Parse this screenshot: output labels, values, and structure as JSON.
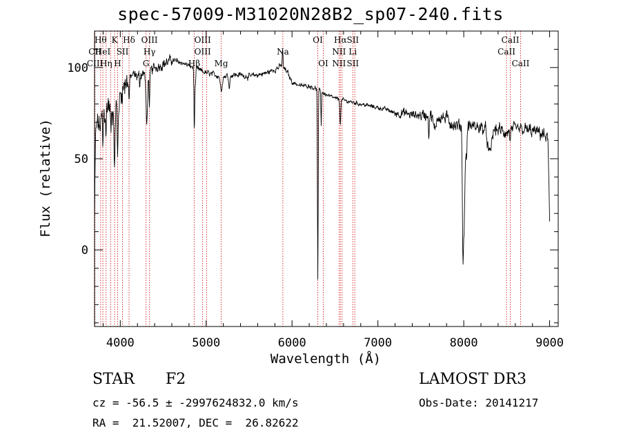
{
  "chart_data": {
    "type": "line",
    "title": "spec-57009-M31020N28B2_sp07-240.fits",
    "xlabel": "Wavelength (Å)",
    "ylabel": "Flux (relative)",
    "xlim": [
      3700,
      9100
    ],
    "ylim": [
      -42,
      120
    ],
    "xticks": [
      4000,
      5000,
      6000,
      7000,
      8000,
      9000
    ],
    "yticks": [
      0,
      50,
      100
    ],
    "grid": false,
    "color": "#000000",
    "line_color": "#cc0000",
    "anchors": [
      [
        3700,
        15
      ],
      [
        3712,
        62
      ],
      [
        3730,
        70
      ],
      [
        3760,
        67
      ],
      [
        3790,
        72
      ],
      [
        3820,
        75
      ],
      [
        3860,
        80
      ],
      [
        3900,
        74
      ],
      [
        3940,
        82
      ],
      [
        3980,
        80
      ],
      [
        4020,
        88
      ],
      [
        4060,
        92
      ],
      [
        4100,
        94
      ],
      [
        4150,
        96
      ],
      [
        4200,
        95
      ],
      [
        4260,
        97
      ],
      [
        4300,
        96
      ],
      [
        4400,
        100
      ],
      [
        4500,
        102
      ],
      [
        4600,
        104
      ],
      [
        4700,
        103
      ],
      [
        4800,
        101
      ],
      [
        4900,
        99
      ],
      [
        5000,
        97
      ],
      [
        5100,
        96
      ],
      [
        5200,
        95
      ],
      [
        5300,
        96
      ],
      [
        5400,
        96
      ],
      [
        5500,
        95
      ],
      [
        5600,
        96
      ],
      [
        5700,
        97
      ],
      [
        5800,
        99
      ],
      [
        5880,
        101
      ],
      [
        5950,
        97
      ],
      [
        6000,
        92
      ],
      [
        6100,
        90
      ],
      [
        6200,
        90
      ],
      [
        6300,
        88
      ],
      [
        6400,
        85
      ],
      [
        6500,
        83
      ],
      [
        6600,
        82
      ],
      [
        6700,
        81
      ],
      [
        6800,
        80
      ],
      [
        6900,
        79
      ],
      [
        7000,
        78
      ],
      [
        7100,
        77
      ],
      [
        7200,
        75
      ],
      [
        7300,
        75
      ],
      [
        7400,
        74
      ],
      [
        7500,
        74
      ],
      [
        7600,
        74
      ],
      [
        7700,
        73
      ],
      [
        7800,
        72
      ],
      [
        7900,
        68
      ],
      [
        8000,
        68
      ],
      [
        8100,
        68
      ],
      [
        8200,
        67
      ],
      [
        8300,
        66
      ],
      [
        8400,
        66
      ],
      [
        8500,
        64
      ],
      [
        8600,
        66
      ],
      [
        8700,
        66
      ],
      [
        8800,
        65
      ],
      [
        8900,
        64
      ],
      [
        8980,
        61
      ],
      [
        9000,
        15
      ]
    ],
    "dips": [
      [
        3934,
        38,
        8
      ],
      [
        3969,
        30,
        8
      ],
      [
        3890,
        12,
        6
      ],
      [
        3835,
        15,
        5
      ],
      [
        3798,
        20,
        4
      ],
      [
        4102,
        12,
        7
      ],
      [
        4226,
        6,
        5
      ],
      [
        4308,
        28,
        12
      ],
      [
        4340,
        22,
        6
      ],
      [
        4861,
        30,
        5
      ],
      [
        4870,
        12,
        10
      ],
      [
        5175,
        8,
        14
      ],
      [
        5270,
        6,
        10
      ],
      [
        5890,
        -10,
        6
      ],
      [
        6300,
        105,
        6
      ],
      [
        6340,
        18,
        5
      ],
      [
        6563,
        14,
        7
      ],
      [
        7594,
        12,
        5
      ],
      [
        7660,
        8,
        20
      ],
      [
        7990,
        62,
        9
      ],
      [
        8005,
        52,
        12
      ],
      [
        8030,
        18,
        10
      ],
      [
        8300,
        14,
        30
      ],
      [
        8542,
        6,
        5
      ]
    ],
    "noise": [
      [
        3700,
        4100,
        10
      ],
      [
        4100,
        4600,
        4
      ],
      [
        4600,
        6000,
        2.2
      ],
      [
        6000,
        7200,
        1.6
      ],
      [
        7200,
        7500,
        3.5
      ],
      [
        7500,
        9000,
        5
      ]
    ],
    "lines": [
      {
        "x": 3705,
        "labels": [
          "",
          "CII",
          "CIII"
        ]
      },
      {
        "x": 3771,
        "labels": [
          "Hθ"
        ]
      },
      {
        "x": 3797,
        "labels": [
          "",
          "HeI"
        ]
      },
      {
        "x": 3835,
        "labels": [
          "",
          "",
          "Hη"
        ]
      },
      {
        "x": 3889,
        "labels": [
          ""
        ]
      },
      {
        "x": 3934,
        "labels": [
          "K"
        ]
      },
      {
        "x": 3969,
        "labels": [
          "",
          "",
          "H"
        ]
      },
      {
        "x": 4026,
        "labels": [
          "",
          "SII"
        ]
      },
      {
        "x": 4102,
        "labels": [
          "Hδ"
        ]
      },
      {
        "x": 4300,
        "labels": [
          "",
          "",
          "G"
        ]
      },
      {
        "x": 4340,
        "labels": [
          "OIII",
          "Hγ"
        ]
      },
      {
        "x": 4861,
        "labels": [
          "",
          "",
          "Hβ"
        ]
      },
      {
        "x": 4959,
        "labels": [
          "OIII",
          "OIII"
        ]
      },
      {
        "x": 5007,
        "labels": [
          ""
        ]
      },
      {
        "x": 5175,
        "labels": [
          "",
          "",
          "Mg"
        ]
      },
      {
        "x": 5893,
        "labels": [
          "",
          "Na"
        ]
      },
      {
        "x": 6300,
        "labels": [
          "OI"
        ]
      },
      {
        "x": 6364,
        "labels": [
          "",
          "",
          "OI"
        ]
      },
      {
        "x": 6548,
        "labels": [
          "",
          "NII",
          "NII"
        ]
      },
      {
        "x": 6563,
        "labels": [
          "Hα"
        ]
      },
      {
        "x": 6583,
        "labels": [
          ""
        ]
      },
      {
        "x": 6708,
        "labels": [
          "SII",
          "Li",
          "SII"
        ]
      },
      {
        "x": 6731,
        "labels": [
          ""
        ]
      },
      {
        "x": 8498,
        "labels": [
          "",
          "CaII"
        ]
      },
      {
        "x": 8542,
        "labels": [
          "CaII"
        ]
      },
      {
        "x": 8662,
        "labels": [
          "",
          "",
          "CaII"
        ]
      }
    ]
  },
  "info": {
    "object_class": "STAR",
    "subclass": "F2",
    "survey": "LAMOST DR3",
    "cz_text": "cz = -56.5 ± -2997624832.0 km/s",
    "obs_date_text": "Obs-Date: 20141217",
    "radec_text": "RA =  21.52007, DEC =  26.82622"
  }
}
